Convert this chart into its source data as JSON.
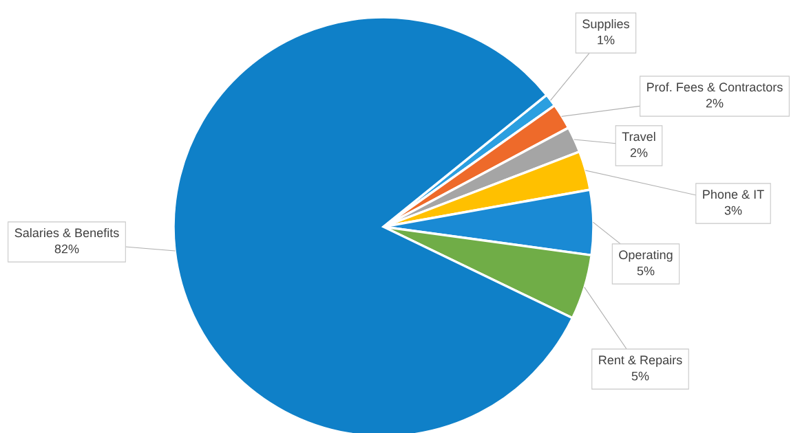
{
  "chart_data": {
    "type": "pie",
    "categories": [
      "Supplies",
      "Prof. Fees & Contractors",
      "Travel",
      "Phone & IT",
      "Operating",
      "Rent & Repairs",
      "Salaries & Benefits"
    ],
    "values": [
      1,
      2,
      2,
      3,
      5,
      5,
      82
    ],
    "colors": [
      "#2b9fe0",
      "#ee6a2a",
      "#a5a5a5",
      "#ffc000",
      "#1a8ad4",
      "#70ad47",
      "#0f80c8"
    ],
    "value_labels": [
      "1%",
      "2%",
      "2%",
      "3%",
      "5%",
      "5%",
      "82%"
    ],
    "legend": false
  }
}
